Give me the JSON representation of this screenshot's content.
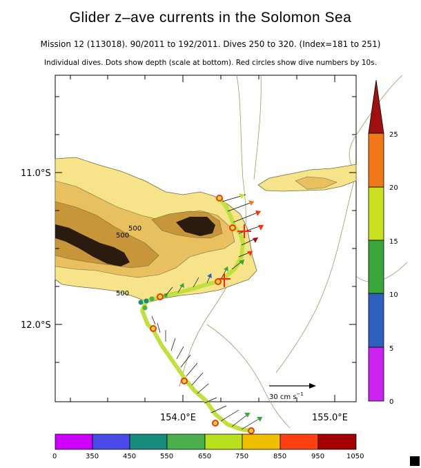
{
  "title": "Glider z–ave currents in the Solomon Sea",
  "subtitle": "Mission 12 (113018). 90/2011 to 192/2011. Dives 250 to 320. (Index=181 to 251)",
  "subtitle2": "Individual dives. Dots show depth (scale at bottom). Red circles show dive numbers by 10s.",
  "map": {
    "lat_labels": [
      "11.0°S",
      "12.0°S"
    ],
    "lon_labels": [
      "154.0°E",
      "155.0°E"
    ],
    "contour_labels": [
      "500",
      "500",
      "500"
    ],
    "scale_label": "30 cm s",
    "scale_exponent": "−1"
  },
  "current_colorbar": {
    "labels": [
      "0",
      "5",
      "10",
      "15",
      "20",
      "25"
    ],
    "colors": [
      "#cc22ee",
      "#2f5fc0",
      "#3aa63a",
      "#c8e020",
      "#f07818",
      "#a01010"
    ]
  },
  "depth_colorbar": {
    "labels": [
      "0",
      "350",
      "450",
      "550",
      "650",
      "750",
      "850",
      "950",
      "1050"
    ],
    "colors": [
      "#cc00ff",
      "#4a4ae8",
      "#1a8a7a",
      "#4cb04c",
      "#b8e020",
      "#f0c000",
      "#ff4010",
      "#a00000"
    ]
  },
  "colors": {
    "land_light": "#f7e38a",
    "land_mid": "#e8c060",
    "land_dark": "#c8963a",
    "land_peak": "#2a1a10",
    "track": "#c0e040",
    "marker": "#ff3010"
  }
}
